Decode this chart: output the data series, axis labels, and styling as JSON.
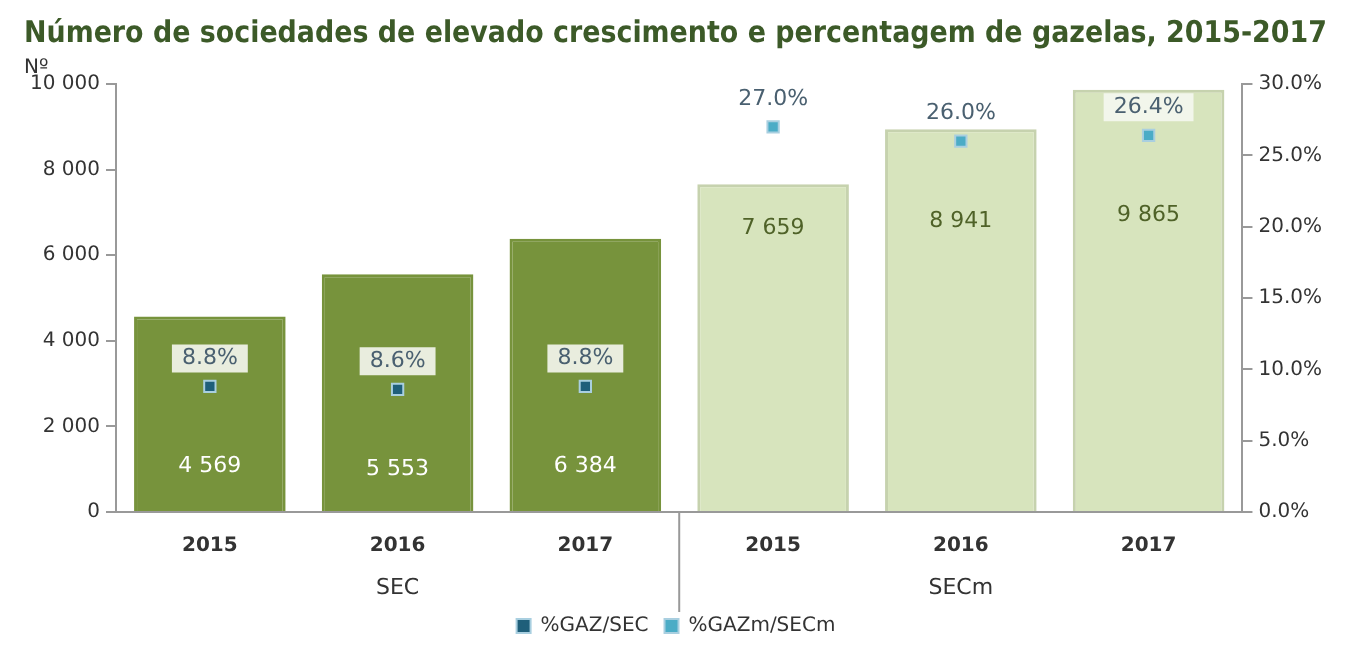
{
  "chart_data": {
    "type": "bar",
    "title": "Número de sociedades de elevado crescimento e percentagem de gazelas, 2015-2017",
    "ylabel": "Nº",
    "categories": [
      "2015",
      "2016",
      "2017",
      "2015",
      "2016",
      "2017"
    ],
    "annotations": [
      "SEC",
      "SECm"
    ],
    "series": [
      {
        "colors": [
          "#77933c",
          "#77933c",
          "#77933c",
          "#d7e4bd",
          "#d7e4bd",
          "#d7e4bd"
        ],
        "values": [
          4569,
          5553,
          6384,
          7659,
          8941,
          9865
        ],
        "value_labels": [
          "4 569",
          "5 553",
          "6 384",
          "7 659",
          "8 941",
          "9 865"
        ]
      },
      {
        "type": "scatter",
        "name": "%GAZ/SEC",
        "color": "#1f5f7a",
        "axis": "y2",
        "values": [
          8.8,
          8.6,
          8.8,
          null,
          null,
          null
        ],
        "value_labels": [
          "8.8%",
          "8.6%",
          "8.8%",
          null,
          null,
          null
        ]
      },
      {
        "type": "scatter",
        "name": "%GAZm/SECm",
        "color": "#4bacc6",
        "axis": "y2",
        "values": [
          null,
          null,
          null,
          27.0,
          26.0,
          26.4
        ],
        "value_labels": [
          null,
          null,
          null,
          "27.0%",
          "26.0%",
          "26.4%"
        ]
      }
    ],
    "ylim": [
      0,
      10000
    ],
    "yticks": [
      0,
      {
        "value": 2000,
        "label": "2 000"
      },
      {
        "value": 4000,
        "label": "4 000"
      },
      {
        "value": 6000,
        "label": "6 000"
      },
      {
        "value": 8000,
        "label": "8 000"
      },
      {
        "value": 10000,
        "label": "10 000"
      }
    ],
    "y2lim": [
      0,
      30
    ],
    "y2ticks": [
      {
        "value": 0,
        "label": "0.0%"
      },
      {
        "value": 5,
        "label": "5.0%"
      },
      {
        "value": 10,
        "label": "10.0%"
      },
      {
        "value": 15,
        "label": "15.0%"
      },
      {
        "value": 20,
        "label": "20.0%"
      },
      {
        "value": 25,
        "label": "25.0%"
      },
      {
        "value": 30,
        "label": "30.0%"
      }
    ],
    "grid": false,
    "legend": "bottom",
    "marker": "square"
  }
}
